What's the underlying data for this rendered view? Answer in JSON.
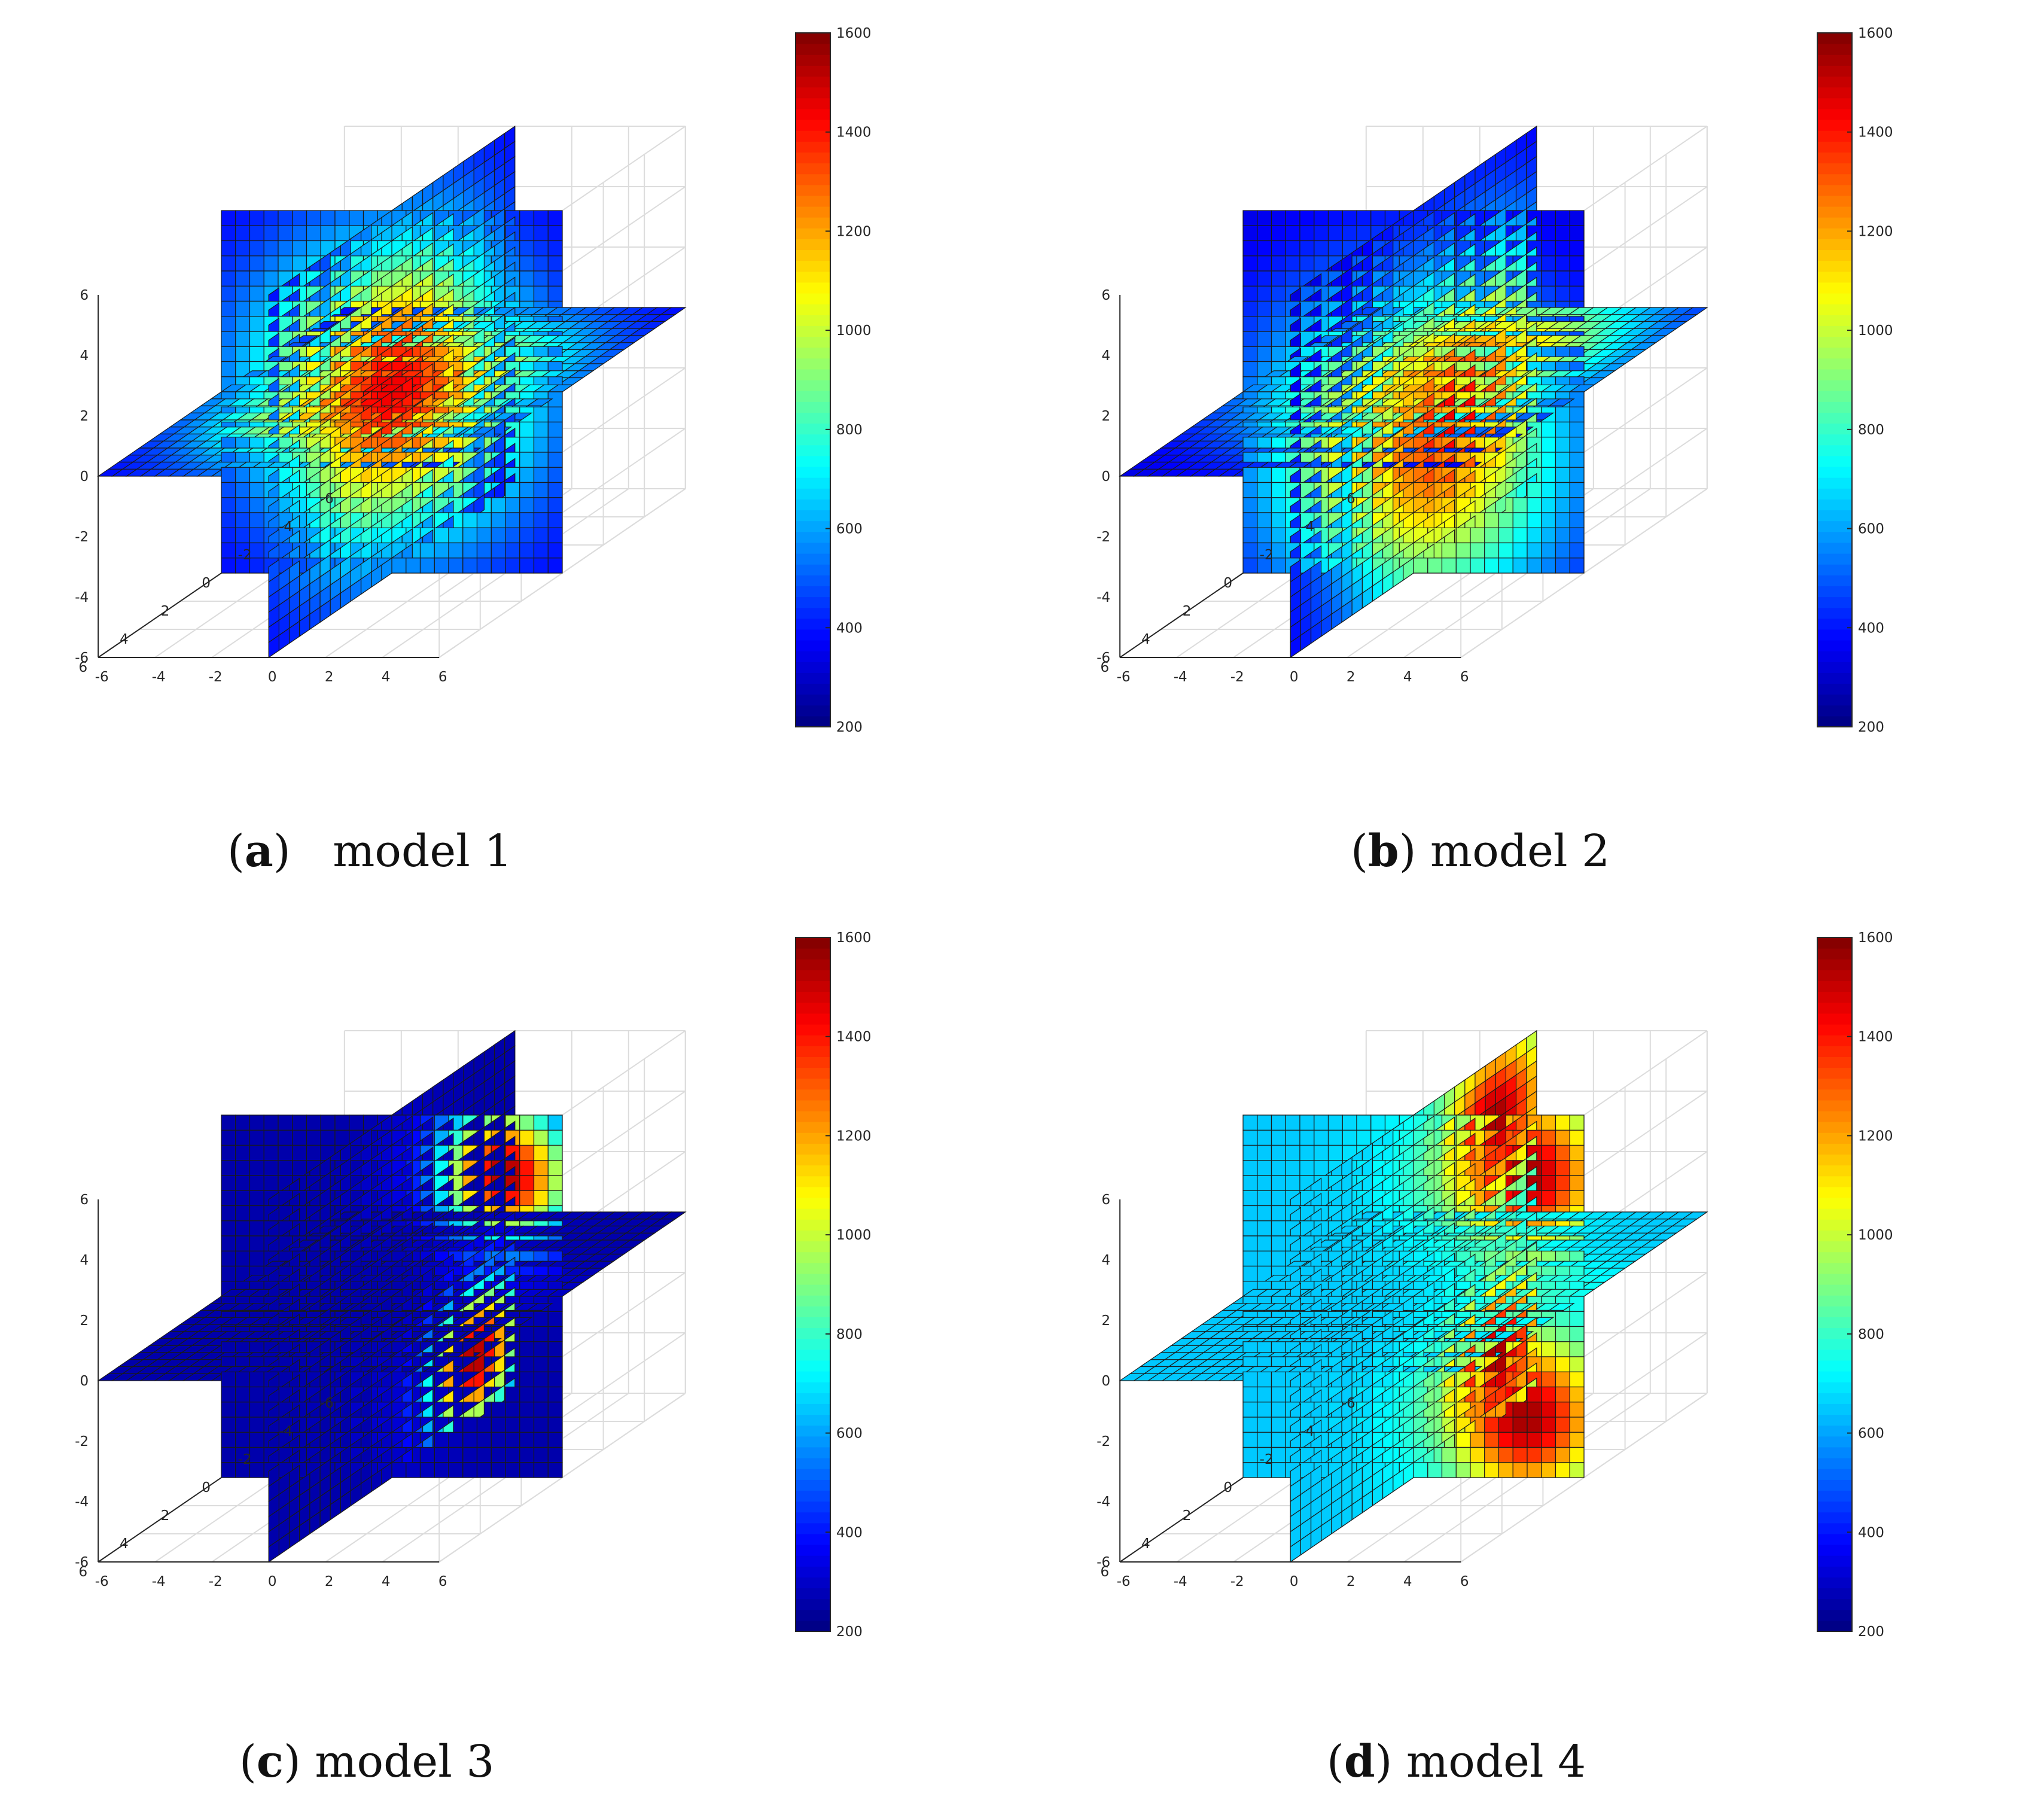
{
  "colors": {
    "jet": "MATLAB jet",
    "grid": "#dcdcdc",
    "mesh_line": "#1a1a1a"
  },
  "colorbar": {
    "min": 200,
    "max": 1600,
    "ticks": [
      "1600",
      "1400",
      "1200",
      "1000",
      "800",
      "600",
      "400",
      "200"
    ]
  },
  "chart_data": [
    {
      "type": "heatmap",
      "plot_kind": "3D orthogonal slice plot",
      "model": "model 1",
      "caption": {
        "letter": "a",
        "text": "model 1"
      },
      "axes": {
        "xlim": [
          -6,
          6
        ],
        "ylim": [
          -6,
          6
        ],
        "zlim": [
          -6,
          6
        ],
        "x_ticks": [
          "6",
          "4",
          "2",
          "0",
          "-2",
          "-4",
          "-6"
        ],
        "y_ticks": [
          "0",
          "2",
          "4",
          "6"
        ],
        "yneg_ticks": [
          "-2",
          "-4",
          "-6"
        ],
        "z_ticks": [
          "6",
          "4",
          "2",
          "0",
          "-2",
          "-4",
          "-6"
        ]
      },
      "clim": [
        200,
        1600
      ],
      "hotspots": [
        {
          "x": 0,
          "y": 0,
          "z": 0,
          "peak": 1450,
          "width": 3.2
        }
      ],
      "background": 350
    },
    {
      "type": "heatmap",
      "plot_kind": "3D orthogonal slice plot",
      "model": "model 2",
      "caption": {
        "letter": "b",
        "text": "model 2"
      },
      "axes": {
        "xlim": [
          -6,
          6
        ],
        "ylim": [
          -6,
          6
        ],
        "zlim": [
          -6,
          6
        ],
        "x_ticks": [
          "6",
          "4",
          "2",
          "0",
          "-2",
          "-4",
          "-6"
        ],
        "y_ticks": [
          "0",
          "2",
          "4",
          "6"
        ],
        "yneg_ticks": [
          "-2",
          "-4",
          "-6"
        ],
        "z_ticks": [
          "6",
          "4",
          "2",
          "0",
          "-2",
          "-4",
          "-6"
        ]
      },
      "clim": [
        200,
        1600
      ],
      "hotspots": [
        {
          "x": -2,
          "y": 0,
          "z": -2,
          "peak": 1450,
          "width": 3.6
        }
      ],
      "background": 320
    },
    {
      "type": "heatmap",
      "plot_kind": "3D orthogonal slice plot",
      "model": "model 3",
      "caption": {
        "letter": "c",
        "text": "model 3"
      },
      "axes": {
        "xlim": [
          -6,
          6
        ],
        "ylim": [
          -6,
          6
        ],
        "zlim": [
          -6,
          6
        ],
        "x_ticks": [
          "6",
          "4",
          "2",
          "0",
          "-2",
          "-4",
          "-6"
        ],
        "y_ticks": [
          "0",
          "2",
          "4",
          "6"
        ],
        "yneg_ticks": [
          "-2",
          "-4",
          "-6"
        ],
        "z_ticks": [
          "6",
          "4",
          "2",
          "0",
          "-2",
          "-4",
          "-6"
        ]
      },
      "clim": [
        200,
        1600
      ],
      "hotspots": [
        {
          "x": -4,
          "y": 0,
          "z": -4,
          "peak": 1550,
          "width": 1.6
        },
        {
          "x": 0,
          "y": 4,
          "z": 4,
          "peak": 1550,
          "width": 1.6
        }
      ],
      "background": 260
    },
    {
      "type": "heatmap",
      "plot_kind": "3D orthogonal slice plot",
      "model": "model 4",
      "caption": {
        "letter": "d",
        "text": "model 4"
      },
      "axes": {
        "xlim": [
          -6,
          6
        ],
        "ylim": [
          -6,
          6
        ],
        "zlim": [
          -6,
          6
        ],
        "x_ticks": [
          "6",
          "4",
          "2",
          "0",
          "-2",
          "-4",
          "-6"
        ],
        "y_ticks": [
          "0",
          "2",
          "4",
          "6"
        ],
        "yneg_ticks": [
          "-2",
          "-4",
          "-6"
        ],
        "z_ticks": [
          "6",
          "4",
          "2",
          "0",
          "-2",
          "-4",
          "-6"
        ]
      },
      "clim": [
        200,
        1600
      ],
      "hotspots": [
        {
          "x": -4,
          "y": 0,
          "z": 4,
          "peak": 1550,
          "width": 1.8
        },
        {
          "x": -4,
          "y": 0,
          "z": -4,
          "peak": 1550,
          "width": 1.8
        },
        {
          "x": 0,
          "y": 4,
          "z": 4,
          "peak": 1550,
          "width": 1.8
        },
        {
          "x": 0,
          "y": 4,
          "z": -4,
          "peak": 1550,
          "width": 1.8
        }
      ],
      "background": 650
    }
  ]
}
